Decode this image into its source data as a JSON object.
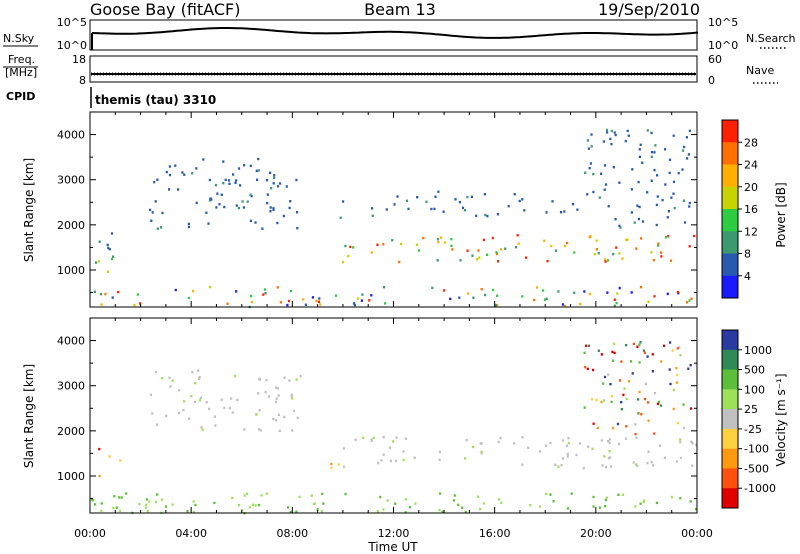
{
  "header": {
    "station": "Goose Bay (fitACF)",
    "beam": "Beam 13",
    "date": "19/Sep/2010"
  },
  "noise_panel": {
    "left_label": "N.Sky",
    "right_label": "N.Search",
    "left_ticks": [
      "10^5",
      "10^0"
    ],
    "right_ticks": [
      "10^5",
      "10^0"
    ]
  },
  "freq_panel": {
    "left_label_1": "Freq.",
    "left_label_2": "[MHz]",
    "right_label": "Nave",
    "left_ticks": [
      "18",
      "8"
    ],
    "right_ticks": [
      "60",
      "0"
    ]
  },
  "cpid": {
    "label": "CPID",
    "value": "themis (tau) 3310"
  },
  "chart_data": [
    {
      "type": "heatmap",
      "panel": "power",
      "ylabel": "Slant Range [km]",
      "y_ticks": [
        "1000",
        "2000",
        "3000",
        "4000"
      ],
      "ylim": [
        180,
        4500
      ],
      "xlim_hours": [
        0,
        24
      ],
      "colorbar_title": "Power [dB]",
      "colorbar_labels": [
        "4",
        "8",
        "12",
        "16",
        "20",
        "24",
        "28"
      ],
      "colorbar_colors": [
        "#1a1aff",
        "#2a5ab0",
        "#3d9a6e",
        "#2ecc40",
        "#c8d400",
        "#ffb000",
        "#ff7000",
        "#ff2000"
      ],
      "echo_regions": [
        {
          "t0": 0.0,
          "t1": 1.0,
          "r0": 900,
          "r1": 1400,
          "level": "medium"
        },
        {
          "t0": 0.0,
          "t1": 0.9,
          "r0": 1400,
          "r1": 1900,
          "level": "low"
        },
        {
          "t0": 2.3,
          "t1": 8.3,
          "r0": 1900,
          "r1": 3500,
          "level": "low"
        },
        {
          "t0": 9.4,
          "t1": 10.0,
          "r0": 1900,
          "r1": 2700,
          "level": "low"
        },
        {
          "t0": 9.8,
          "t1": 24.0,
          "r0": 1200,
          "r1": 1800,
          "level": "high"
        },
        {
          "t0": 11.0,
          "t1": 20.0,
          "r0": 2200,
          "r1": 2800,
          "level": "low"
        },
        {
          "t0": 19.5,
          "t1": 23.8,
          "r0": 1900,
          "r1": 4200,
          "level": "low"
        },
        {
          "t0": 0.0,
          "t1": 24.0,
          "r0": 200,
          "r1": 650,
          "level": "mixed"
        }
      ]
    },
    {
      "type": "heatmap",
      "panel": "velocity",
      "ylabel": "Slant Range [km]",
      "xlabel": "Time UT",
      "x_ticks": [
        "00:00",
        "04:00",
        "08:00",
        "12:00",
        "16:00",
        "20:00",
        "00:00"
      ],
      "y_ticks": [
        "1000",
        "2000",
        "3000",
        "4000"
      ],
      "ylim": [
        180,
        4500
      ],
      "xlim_hours": [
        0,
        24
      ],
      "colorbar_title": "Velocity [m s⁻¹]",
      "colorbar_labels": [
        "1000",
        "500",
        "100",
        "25",
        "-25",
        "-100",
        "-500",
        "-1000"
      ],
      "colorbar_colors": [
        "#2a3aa0",
        "#2e8b57",
        "#5cbf3a",
        "#9de05a",
        "#c0c0c0",
        "#ffd040",
        "#ff9a10",
        "#ff5010",
        "#e00000"
      ],
      "echo_regions": [
        {
          "t0": 0.0,
          "t1": 1.2,
          "r0": 1000,
          "r1": 1400,
          "level": "negative"
        },
        {
          "t0": 0.0,
          "t1": 0.9,
          "r0": 1400,
          "r1": 1900,
          "level": "mixed"
        },
        {
          "t0": 2.3,
          "t1": 8.3,
          "r0": 2000,
          "r1": 3400,
          "level": "ground"
        },
        {
          "t0": 9.4,
          "t1": 10.0,
          "r0": 1100,
          "r1": 1500,
          "level": "negative"
        },
        {
          "t0": 9.8,
          "t1": 24.0,
          "r0": 1200,
          "r1": 1900,
          "level": "ground"
        },
        {
          "t0": 19.5,
          "t1": 23.8,
          "r0": 1900,
          "r1": 4000,
          "level": "mixed"
        },
        {
          "t0": 0.0,
          "t1": 24.0,
          "r0": 200,
          "r1": 650,
          "level": "positive"
        }
      ]
    }
  ]
}
